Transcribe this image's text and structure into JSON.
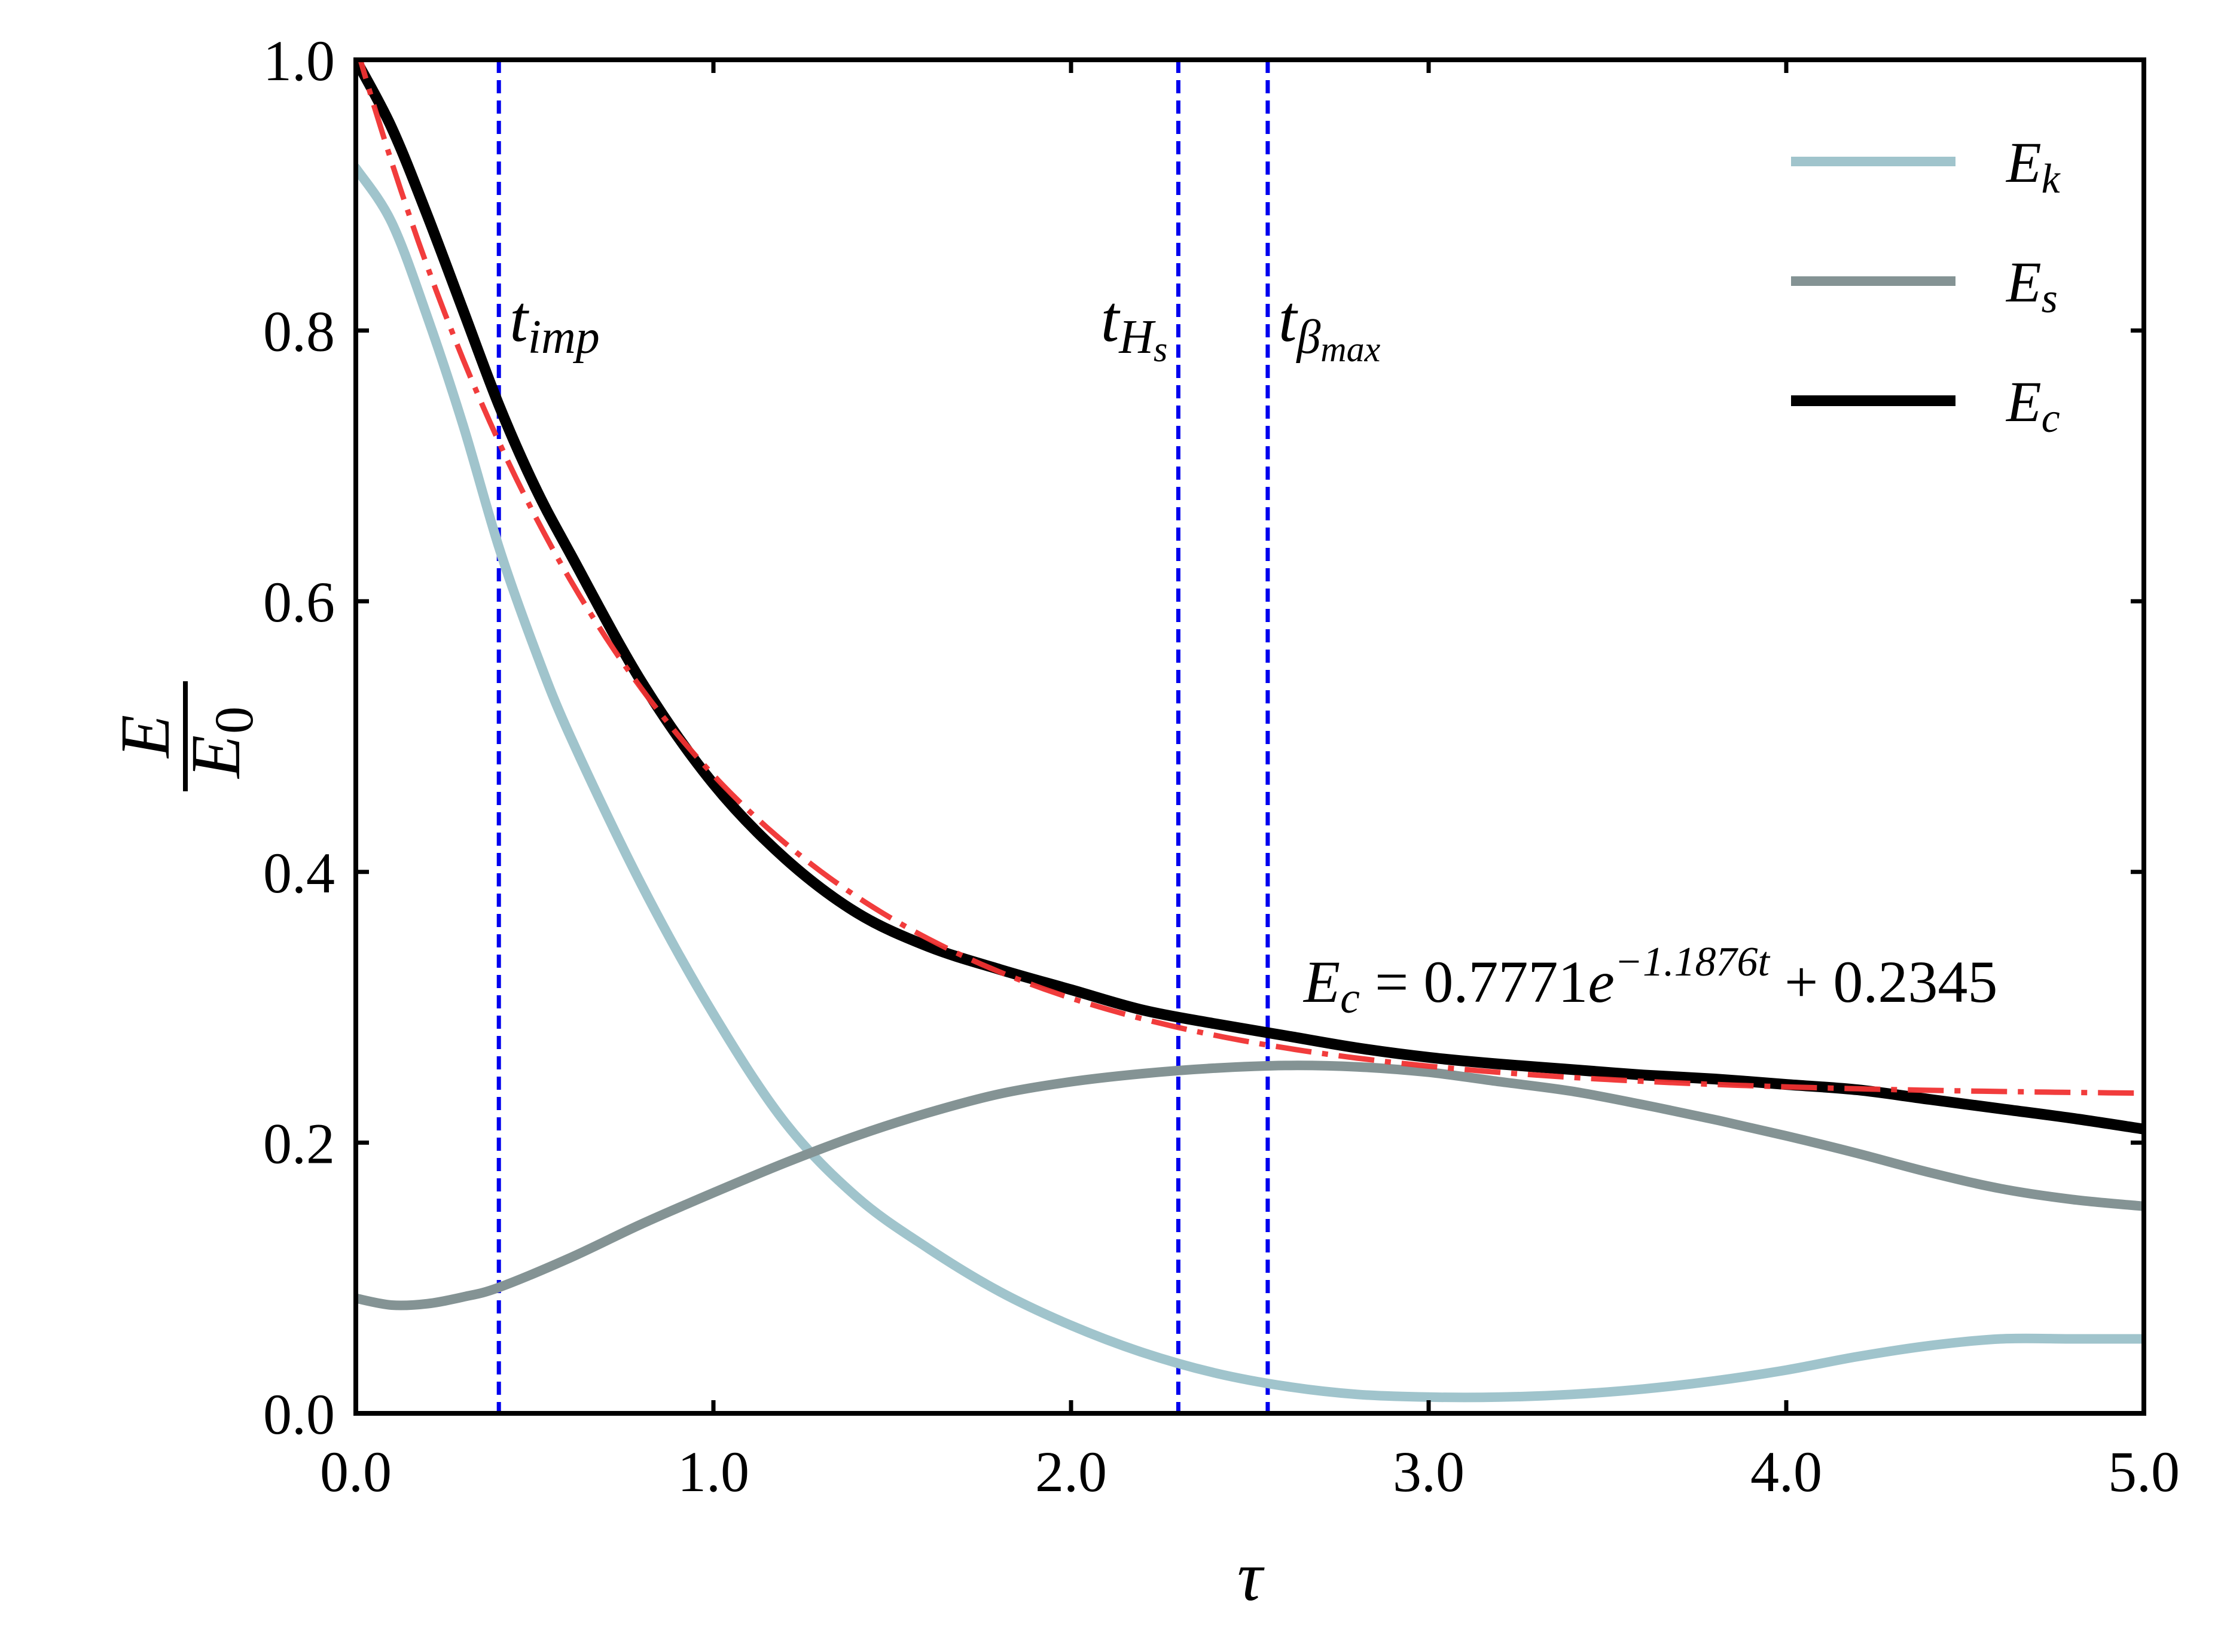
{
  "chart_data": {
    "type": "line",
    "title": "",
    "xlabel": "τ",
    "ylabel": {
      "numerator": "E",
      "denominator": "E",
      "denominator_subscript": "0"
    },
    "xlim": [
      0.0,
      5.0
    ],
    "ylim": [
      0.0,
      1.0
    ],
    "xticks": [
      0.0,
      1.0,
      2.0,
      3.0,
      4.0,
      5.0
    ],
    "xtick_labels": [
      "0.0",
      "1.0",
      "2.0",
      "3.0",
      "4.0",
      "5.0"
    ],
    "yticks": [
      0.0,
      0.2,
      0.4,
      0.6,
      0.8,
      1.0
    ],
    "ytick_labels": [
      "0.0",
      "0.2",
      "0.4",
      "0.6",
      "0.8",
      "1.0"
    ],
    "grid": false,
    "legend_position": "top-right",
    "series": [
      {
        "name": "E_k",
        "legend_base": "E",
        "legend_sub": "k",
        "color": "#a0c4cc",
        "style": "solid",
        "x": [
          0.0,
          0.1,
          0.2,
          0.3,
          0.4,
          0.5,
          0.6,
          0.8,
          1.0,
          1.2,
          1.4,
          1.6,
          1.8,
          2.0,
          2.2,
          2.4,
          2.6,
          2.8,
          3.0,
          3.2,
          3.4,
          3.6,
          3.8,
          4.0,
          4.2,
          4.4,
          4.6,
          4.8,
          5.0
        ],
        "y": [
          0.92,
          0.88,
          0.81,
          0.73,
          0.64,
          0.565,
          0.5,
          0.39,
          0.295,
          0.215,
          0.16,
          0.122,
          0.09,
          0.065,
          0.045,
          0.03,
          0.02,
          0.014,
          0.012,
          0.012,
          0.014,
          0.018,
          0.024,
          0.032,
          0.042,
          0.05,
          0.055,
          0.055,
          0.055
        ]
      },
      {
        "name": "E_s",
        "legend_base": "E",
        "legend_sub": "s",
        "color": "#849394",
        "style": "solid",
        "x": [
          0.0,
          0.1,
          0.2,
          0.3,
          0.4,
          0.6,
          0.8,
          1.0,
          1.2,
          1.4,
          1.6,
          1.8,
          2.0,
          2.2,
          2.4,
          2.6,
          2.8,
          3.0,
          3.2,
          3.4,
          3.6,
          3.8,
          4.0,
          4.2,
          4.4,
          4.6,
          4.8,
          5.0
        ],
        "y": [
          0.085,
          0.08,
          0.081,
          0.086,
          0.093,
          0.115,
          0.14,
          0.163,
          0.185,
          0.205,
          0.222,
          0.236,
          0.245,
          0.251,
          0.255,
          0.257,
          0.256,
          0.252,
          0.245,
          0.238,
          0.228,
          0.217,
          0.205,
          0.192,
          0.178,
          0.166,
          0.158,
          0.153
        ]
      },
      {
        "name": "E_c",
        "legend_base": "E",
        "legend_sub": "c",
        "color": "#000000",
        "style": "solid",
        "x": [
          0.0,
          0.1,
          0.2,
          0.3,
          0.4,
          0.5,
          0.6,
          0.8,
          1.0,
          1.2,
          1.4,
          1.6,
          1.8,
          2.0,
          2.2,
          2.4,
          2.6,
          2.8,
          3.0,
          3.2,
          3.4,
          3.6,
          3.8,
          4.0,
          4.2,
          4.4,
          4.6,
          4.8,
          5.0
        ],
        "y": [
          1.0,
          0.95,
          0.885,
          0.815,
          0.745,
          0.685,
          0.635,
          0.54,
          0.465,
          0.41,
          0.37,
          0.345,
          0.328,
          0.313,
          0.298,
          0.288,
          0.279,
          0.27,
          0.263,
          0.258,
          0.254,
          0.25,
          0.247,
          0.243,
          0.239,
          0.232,
          0.225,
          0.218,
          0.21
        ]
      },
      {
        "name": "fit",
        "color": "#f03232",
        "style": "dashdot",
        "function": {
          "a": 0.7771,
          "b": -1.1876,
          "c": 0.2345
        },
        "x_range": [
          0.0,
          5.0
        ]
      }
    ],
    "vlines": [
      {
        "x": 0.4,
        "label_base": "t",
        "label_sub": "imp",
        "label_subsub": "",
        "color": "#0000ee"
      },
      {
        "x": 2.3,
        "label_base": "t",
        "label_sub": "H",
        "label_subsub": "s",
        "color": "#0000ee"
      },
      {
        "x": 2.55,
        "label_base": "t",
        "label_sub": "β",
        "label_subsub": "max",
        "color": "#0000ee"
      }
    ],
    "annotations": {
      "fit_label": {
        "lhs_base": "E",
        "lhs_sub": "c",
        "eq": " = 0.7771",
        "e": "e",
        "exp": "−1.1876t",
        "tail": " + 0.2345"
      }
    }
  }
}
